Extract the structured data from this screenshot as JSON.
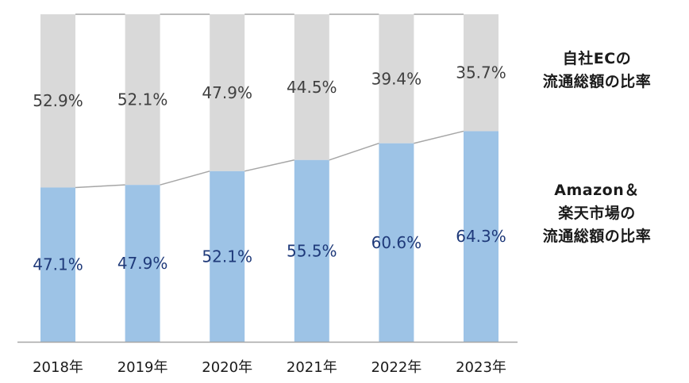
{
  "chart_data": {
    "type": "bar",
    "stacked": true,
    "categories": [
      "2018年",
      "2019年",
      "2020年",
      "2021年",
      "2022年",
      "2023年"
    ],
    "series": [
      {
        "name": "Amazon＆楽天市場の流通総額の比率",
        "values": [
          47.1,
          47.9,
          52.1,
          55.5,
          60.6,
          64.3
        ],
        "labels": [
          "47.1%",
          "47.9%",
          "52.1%",
          "55.5%",
          "60.6%",
          "64.3%"
        ],
        "color": "#9dc3e6",
        "label_color": "#1f3a7a"
      },
      {
        "name": "自社ECの流通総額の比率",
        "values": [
          52.9,
          52.1,
          47.9,
          44.5,
          39.4,
          35.7
        ],
        "labels": [
          "52.9%",
          "52.1%",
          "47.9%",
          "44.5%",
          "39.4%",
          "35.7%"
        ],
        "color": "#d9d9d9",
        "label_color": "#404040"
      }
    ],
    "ylim": [
      0,
      100
    ],
    "grid": false,
    "legend": "right",
    "title": "",
    "xlabel": "",
    "ylabel": ""
  },
  "legend_labels": {
    "own_ec": [
      "自社ECの",
      "流通総額の比率"
    ],
    "marketplace": [
      "Amazon＆",
      "楽天市場の",
      "流通総額の比率"
    ]
  },
  "colors": {
    "axis": "#a6a6a6",
    "connector": "#a6a6a6"
  }
}
